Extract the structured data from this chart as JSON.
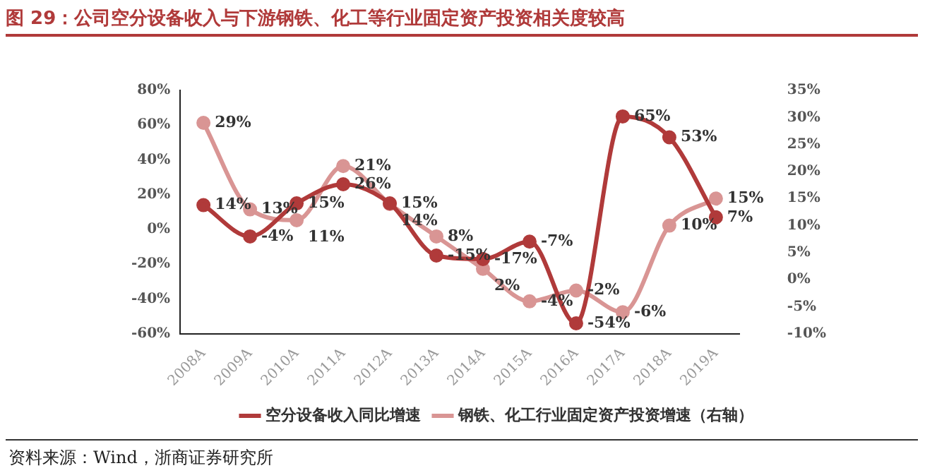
{
  "chart_data": {
    "type": "line",
    "title": "图 29：公司空分设备收入与下游钢铁、化工等行业固定资产投资相关度较高",
    "categories": [
      "2008A",
      "2009A",
      "2010A",
      "2011A",
      "2012A",
      "2013A",
      "2014A",
      "2015A",
      "2016A",
      "2017A",
      "2018A",
      "2019A"
    ],
    "series": [
      {
        "name": "空分设备收入同比增速",
        "color": "#b03a3a",
        "values": [
          14,
          -4,
          15,
          26,
          15,
          -15,
          -17,
          -7,
          -54,
          65,
          53,
          7
        ],
        "value_labels": [
          "14%",
          "-4%",
          "15%",
          "26%",
          "15%",
          "-15%",
          "-17%",
          "-7%",
          "-54%",
          "65%",
          "53%",
          "7%"
        ]
      },
      {
        "name": "钢铁、化工行业固定资产投资增速（右轴）",
        "color": "#d99594",
        "axis": "y2",
        "values": [
          29,
          13,
          11,
          21,
          14,
          8,
          2,
          -4,
          -2,
          -6,
          10,
          15
        ],
        "value_labels": [
          "29%",
          "13%",
          "11%",
          "21%",
          "14%",
          "8%",
          "2%",
          "-4%",
          "-2%",
          "-6%",
          "10%",
          "15%"
        ]
      }
    ],
    "ylim": [
      -60,
      80
    ],
    "yticks": [
      {
        "value": -60,
        "label": "-60%"
      },
      {
        "value": -40,
        "label": "-40%"
      },
      {
        "value": -20,
        "label": "-20%"
      },
      {
        "value": 0,
        "label": "0%"
      },
      {
        "value": 20,
        "label": "20%"
      },
      {
        "value": 40,
        "label": "40%"
      },
      {
        "value": 60,
        "label": "60%"
      },
      {
        "value": 80,
        "label": "80%"
      }
    ],
    "y2lim": [
      -10,
      35
    ],
    "y2ticks": [
      {
        "value": -10,
        "label": "-10%"
      },
      {
        "value": -5,
        "label": "-5%"
      },
      {
        "value": 0,
        "label": "0%"
      },
      {
        "value": 5,
        "label": "5%"
      },
      {
        "value": 10,
        "label": "10%"
      },
      {
        "value": 15,
        "label": "15%"
      },
      {
        "value": 20,
        "label": "20%"
      },
      {
        "value": 25,
        "label": "25%"
      },
      {
        "value": 30,
        "label": "30%"
      },
      {
        "value": 35,
        "label": "35%"
      }
    ],
    "grid": false,
    "legend": "bottom",
    "marker": "circle",
    "line_style": "solid",
    "annotations": [
      "资料来源：Wind，浙商证券研究所"
    ]
  }
}
